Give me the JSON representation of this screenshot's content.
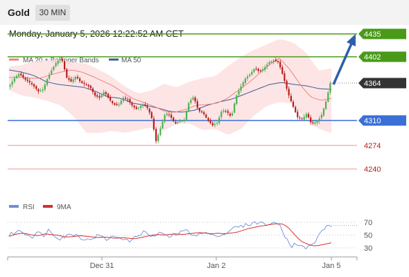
{
  "header": {
    "instrument": "Gold",
    "timeframe": "30 MIN"
  },
  "timestamp": "Monday, January 5, 2026 12:22:52 AM CET",
  "colors": {
    "bullish": "#4caf50",
    "bearish": "#b71c1c",
    "ma20": "#f08080",
    "ma50": "#3c5a96",
    "band_fill": "#fde0e0",
    "resistance": "#4a9a1a",
    "support": "#3a6fd6",
    "low_level": "#e57373",
    "arrow": "#2f5ea8",
    "current": "#333333",
    "rsi": "#6c8ed8",
    "rsi_ma": "#d32f2f"
  },
  "chart_data": [
    {
      "type": "candlestick",
      "instrument": "Gold",
      "timeframe": "30 MIN",
      "ylim": [
        4228,
        4455
      ],
      "x_ticks": [
        "Dec 31",
        "Jan 2",
        "Jan 5"
      ],
      "legend": [
        {
          "name": "MA 20 + Bollinger Bands",
          "color": "#f08080"
        },
        {
          "name": "MA 50",
          "color": "#3c5a96"
        }
      ],
      "levels": [
        {
          "value": 4435,
          "label": "4435",
          "kind": "resistance",
          "style": "badge"
        },
        {
          "value": 4402,
          "label": "4402",
          "kind": "resistance",
          "style": "badge"
        },
        {
          "value": 4364,
          "label": "4364",
          "kind": "current",
          "style": "badge"
        },
        {
          "value": 4310,
          "label": "4310",
          "kind": "support",
          "style": "badge"
        },
        {
          "value": 4274,
          "label": "4274",
          "kind": "low",
          "style": "text"
        },
        {
          "value": 4240,
          "label": "4240",
          "kind": "low",
          "style": "text"
        }
      ],
      "forecast_arrow": {
        "from": 4364,
        "to": 4435
      },
      "close_anchors": [
        4361,
        4372,
        4378,
        4370,
        4366,
        4360,
        4352,
        4355,
        4372,
        4385,
        4396,
        4399,
        4372,
        4366,
        4374,
        4365,
        4362,
        4358,
        4346,
        4343,
        4352,
        4341,
        4333,
        4332,
        4343,
        4340,
        4331,
        4326,
        4333,
        4330,
        4316,
        4280,
        4300,
        4321,
        4317,
        4305,
        4309,
        4311,
        4337,
        4344,
        4324,
        4321,
        4310,
        4303,
        4307,
        4325,
        4323,
        4315,
        4345,
        4359,
        4371,
        4377,
        4386,
        4380,
        4386,
        4394,
        4397,
        4394,
        4374,
        4350,
        4332,
        4315,
        4312,
        4320,
        4305,
        4308,
        4315,
        4335,
        4364
      ],
      "ma20_anchors": [
        4372,
        4373,
        4371,
        4371,
        4376,
        4380,
        4383,
        4380,
        4374,
        4367,
        4360,
        4350,
        4341,
        4336,
        4330,
        4323,
        4322,
        4326,
        4332,
        4333,
        4335,
        4342,
        4353,
        4364,
        4377,
        4390,
        4400,
        4384,
        4362,
        4344,
        4339,
        4342
      ],
      "bb_upper_anchors": [
        4388,
        4390,
        4396,
        4397,
        4398,
        4394,
        4392,
        4383,
        4373,
        4359,
        4349,
        4353,
        4363,
        4358,
        4366,
        4371,
        4374,
        4389,
        4402,
        4412,
        4420,
        4428,
        4423,
        4409,
        4382,
        4385
      ],
      "bb_lower_anchors": [
        4354,
        4346,
        4343,
        4338,
        4332,
        4316,
        4292,
        4292,
        4295,
        4292,
        4296,
        4300,
        4295,
        4305,
        4306,
        4296,
        4298,
        4289,
        4298,
        4317,
        4331,
        4337,
        4334,
        4311,
        4298,
        4292
      ],
      "ma50_anchors": [
        4383,
        4380,
        4375,
        4366,
        4362,
        4360,
        4358,
        4352,
        4344,
        4342,
        4335,
        4332,
        4328,
        4323,
        4322,
        4325,
        4332,
        4337,
        4341,
        4348,
        4355,
        4362,
        4365,
        4362,
        4360,
        4356,
        4355
      ]
    },
    {
      "type": "line",
      "name": "RSI",
      "y_ticks": [
        70,
        50,
        30
      ],
      "ylim": [
        15,
        80
      ],
      "legend": [
        {
          "name": "RSI",
          "color": "#6c8ed8"
        },
        {
          "name": "9MA",
          "color": "#d32f2f"
        }
      ],
      "rsi_anchors": [
        50,
        54,
        57,
        52,
        47,
        55,
        49,
        58,
        50,
        45,
        48,
        52,
        50,
        45,
        42,
        47,
        50,
        43,
        46,
        48,
        46,
        40,
        44,
        52,
        55,
        49,
        48,
        55,
        46,
        50,
        52,
        58,
        54,
        50,
        52,
        54,
        48,
        51,
        50,
        58,
        62,
        63,
        66,
        68,
        70,
        68,
        67,
        68,
        66,
        45,
        33,
        38,
        30,
        31,
        38,
        52,
        64,
        65
      ],
      "rsi_ma_anchors": [
        48,
        51,
        53,
        52,
        50,
        49,
        52,
        51,
        50,
        48,
        47,
        48,
        49,
        48,
        47,
        46,
        47,
        46,
        45,
        46,
        45,
        44,
        46,
        48,
        50,
        51,
        50,
        51,
        52,
        51,
        52,
        53,
        54,
        53,
        52,
        53,
        52,
        53,
        54,
        57,
        60,
        62,
        64,
        65,
        67,
        68,
        67,
        60,
        49,
        40,
        36,
        33,
        34,
        36,
        38
      ]
    }
  ]
}
